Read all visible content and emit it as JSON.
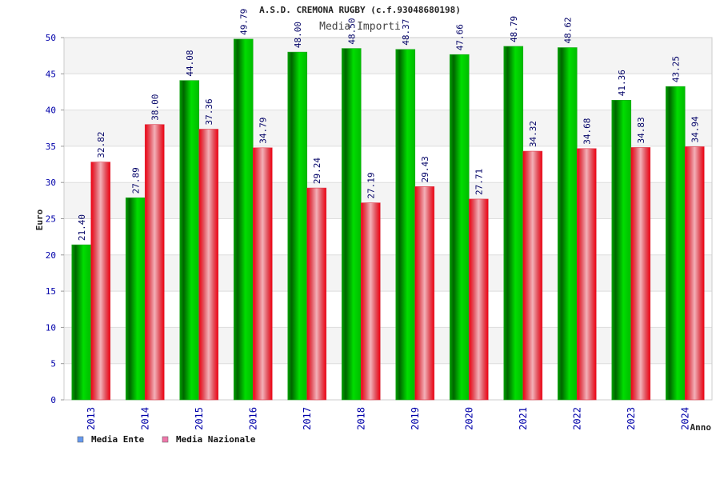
{
  "chart_data": {
    "type": "bar",
    "title": "A.S.D. CREMONA RUGBY (c.f.93048680198)",
    "subtitle": "Media Importi",
    "xlabel": "Anno",
    "ylabel": "Euro",
    "ylim": [
      0,
      50
    ],
    "yticks": [
      0,
      5,
      10,
      15,
      20,
      25,
      30,
      35,
      40,
      45,
      50
    ],
    "grid": true,
    "legend": "bottom-left",
    "categories": [
      "2013",
      "2014",
      "2015",
      "2016",
      "2017",
      "2018",
      "2019",
      "2020",
      "2021",
      "2022",
      "2023",
      "2024"
    ],
    "series": [
      {
        "name": "Media Ente",
        "color": "#00cc00",
        "values": [
          21.4,
          27.89,
          44.08,
          49.79,
          48.0,
          48.5,
          48.37,
          47.66,
          48.79,
          48.62,
          41.36,
          43.25
        ],
        "labels": [
          "21.40",
          "27.89",
          "44.08",
          "49.79",
          "48.00",
          "48.50",
          "48.37",
          "47.66",
          "48.79",
          "48.62",
          "41.36",
          "43.25"
        ]
      },
      {
        "name": "Media Nazionale",
        "color": "#ee1122",
        "values": [
          32.82,
          38.0,
          37.36,
          34.79,
          29.24,
          27.19,
          29.43,
          27.71,
          34.32,
          34.68,
          34.83,
          34.94
        ],
        "labels": [
          "32.82",
          "38.00",
          "37.36",
          "34.79",
          "29.24",
          "27.19",
          "29.43",
          "27.71",
          "34.32",
          "34.68",
          "34.83",
          "34.94"
        ]
      }
    ],
    "legend_swatch_colors": [
      "#6699ee",
      "#ee77aa"
    ]
  }
}
